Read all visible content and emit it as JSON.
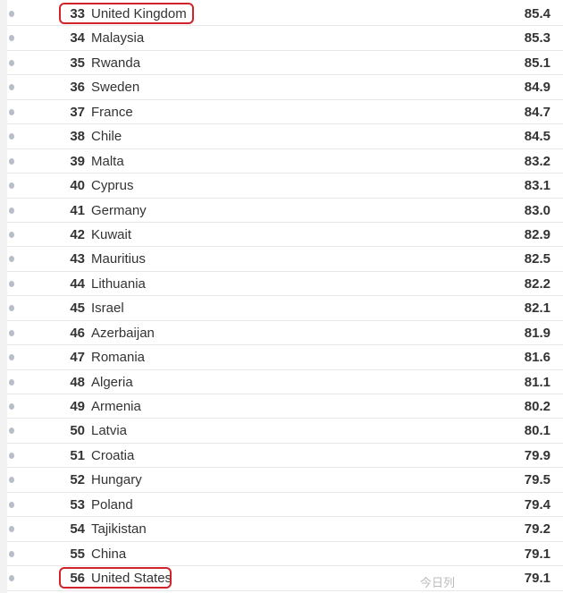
{
  "rows": [
    {
      "rank": "33",
      "name": "United Kingdom",
      "value": "85.4",
      "highlighted": true
    },
    {
      "rank": "34",
      "name": "Malaysia",
      "value": "85.3"
    },
    {
      "rank": "35",
      "name": "Rwanda",
      "value": "85.1"
    },
    {
      "rank": "36",
      "name": "Sweden",
      "value": "84.9"
    },
    {
      "rank": "37",
      "name": "France",
      "value": "84.7"
    },
    {
      "rank": "38",
      "name": "Chile",
      "value": "84.5"
    },
    {
      "rank": "39",
      "name": "Malta",
      "value": "83.2"
    },
    {
      "rank": "40",
      "name": "Cyprus",
      "value": "83.1"
    },
    {
      "rank": "41",
      "name": "Germany",
      "value": "83.0"
    },
    {
      "rank": "42",
      "name": "Kuwait",
      "value": "82.9"
    },
    {
      "rank": "43",
      "name": "Mauritius",
      "value": "82.5"
    },
    {
      "rank": "44",
      "name": "Lithuania",
      "value": "82.2"
    },
    {
      "rank": "45",
      "name": "Israel",
      "value": "82.1"
    },
    {
      "rank": "46",
      "name": "Azerbaijan",
      "value": "81.9"
    },
    {
      "rank": "47",
      "name": "Romania",
      "value": "81.6"
    },
    {
      "rank": "48",
      "name": "Algeria",
      "value": "81.1"
    },
    {
      "rank": "49",
      "name": "Armenia",
      "value": "80.2"
    },
    {
      "rank": "50",
      "name": "Latvia",
      "value": "80.1"
    },
    {
      "rank": "51",
      "name": "Croatia",
      "value": "79.9"
    },
    {
      "rank": "52",
      "name": "Hungary",
      "value": "79.5"
    },
    {
      "rank": "53",
      "name": "Poland",
      "value": "79.4"
    },
    {
      "rank": "54",
      "name": "Tajikistan",
      "value": "79.2"
    },
    {
      "rank": "55",
      "name": "China",
      "value": "79.1"
    },
    {
      "rank": "56",
      "name": "United States",
      "value": "79.1",
      "highlighted": true
    }
  ],
  "highlight_color": "#d0232a",
  "watermark": "今日列",
  "icons": {
    "row_marker": "dot-icon"
  }
}
